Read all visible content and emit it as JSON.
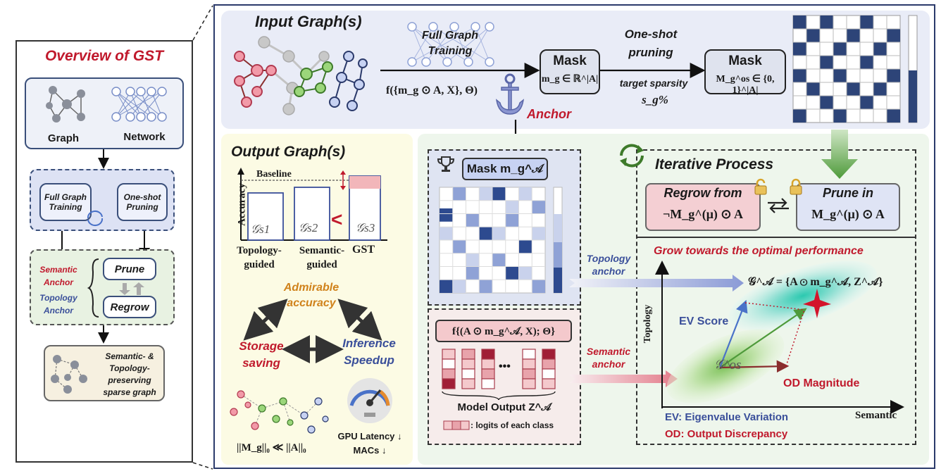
{
  "overview": {
    "title": "Overview of GST",
    "graph": "Graph",
    "network": "Network",
    "full_graph_training": "Full Graph Training",
    "one_shot_pruning": "One-shot Pruning",
    "semantic_anchor": "Semantic Anchor",
    "topology_anchor": "Topology Anchor",
    "prune": "Prune",
    "regrow": "Regrow",
    "result": "Semantic- & Topology-preserving sparse graph"
  },
  "input": {
    "title": "Input Graph(s)",
    "full_graph_training": "Full Graph Training",
    "func": "f({m_g ⊙ A, X}, Θ)",
    "anchor": "Anchor",
    "mask1_title": "Mask",
    "mask1_formula": "m_g ∈ ℝ^|A|",
    "one_shot": "One-shot pruning",
    "target_sparsity": "target sparsity",
    "sparsity_symbol": "s_g%",
    "mask2_title": "Mask",
    "mask2_formula": "M_g^os ∈ {0, 1}^|A|"
  },
  "output": {
    "title": "Output Graph(s)",
    "baseline": "Baseline",
    "ylabel": "Accuracy",
    "bars": [
      "𝒢s1",
      "𝒢s2",
      "𝒢s3"
    ],
    "less_than": "<",
    "xlabels": [
      "Topology-guided",
      "Semantic-guided",
      "GST"
    ],
    "admirable": "Admirable accuracy",
    "storage": "Storage saving",
    "inference": "Inference Speedup",
    "norm": "||M_g||₀ ≪ ||A||₀",
    "gpu": "GPU Latency ↓",
    "macs": "MACs ↓"
  },
  "mask_panel": {
    "title": "Mask m_g^𝒜",
    "func": "f{(A ⊙ m_g^𝒜, X); Θ}",
    "dots": "•••",
    "model_output": "Model Output Z^𝒜",
    "logits": ": logits of each class"
  },
  "iterative": {
    "title": "Iterative Process",
    "regrow": "Regrow from",
    "regrow_formula": "¬M_g^(μ) ⊙ A",
    "prune": "Prune in",
    "prune_formula": "M_g^(μ) ⊙ A",
    "grow": "Grow towards the optimal performance",
    "topology_anchor": "Topology anchor",
    "semantic_anchor": "Semantic anchor",
    "g_formula": "𝒢^𝒜 = {A ⊙ m_g^𝒜, Z^𝒜}",
    "ev_score": "EV Score",
    "g_os": "𝒢^os",
    "od_magnitude": "OD Magnitude",
    "ylabel": "Topology",
    "xlabel": "Semantic",
    "ev_def": "EV: Eigenvalue Variation",
    "od_def": "OD: Output Discrepancy"
  }
}
